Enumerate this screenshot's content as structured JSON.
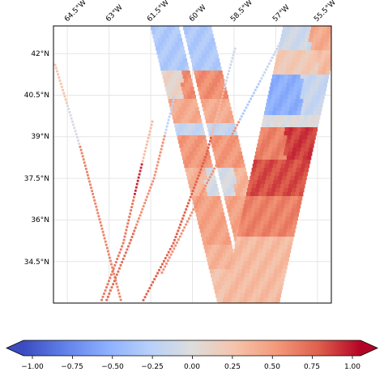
{
  "map": {
    "lon_ticks": [
      "64.5°W",
      "63°W",
      "61.5°W",
      "60°W",
      "58.5°W",
      "57°W",
      "55.5°W"
    ],
    "lat_ticks": [
      "42°N",
      "40.5°N",
      "39°N",
      "37.5°N",
      "36°N",
      "34.5°N"
    ],
    "lon_values": [
      -64.5,
      -63,
      -61.5,
      -60,
      -58.5,
      -57,
      -55.5
    ],
    "lat_values": [
      42,
      40.5,
      39,
      37.5,
      36,
      34.5
    ],
    "extent": {
      "lon_min": -65,
      "lon_max": -55,
      "lat_min": 33,
      "lat_max": 43
    }
  },
  "colorbar": {
    "cmap": "coolwarm",
    "vmin": -1.0,
    "vmax": 1.0,
    "extend": "both",
    "ticks": [
      "−1.00",
      "−0.75",
      "−0.50",
      "−0.25",
      "0.00",
      "0.25",
      "0.50",
      "0.75",
      "1.00"
    ],
    "tick_values": [
      -1.0,
      -0.75,
      -0.5,
      -0.25,
      0.0,
      0.25,
      0.5,
      0.75,
      1.0
    ]
  },
  "colors": {
    "frame": "#000000",
    "grid": "#e6e6e6",
    "cmap_low": "#3b4cc0",
    "cmap_mid": "#dddddd",
    "cmap_high": "#b40426"
  }
}
